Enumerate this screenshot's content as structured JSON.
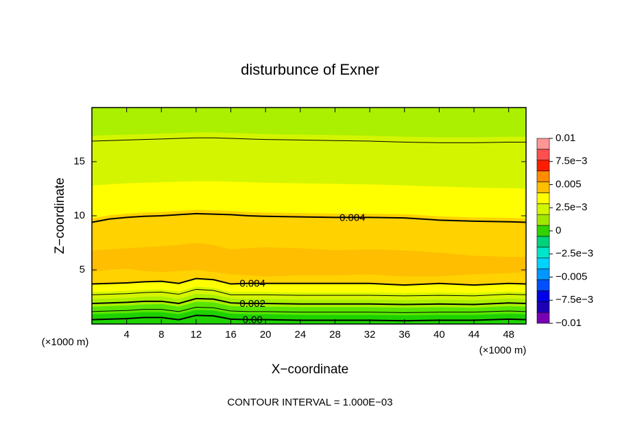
{
  "chart_data": {
    "type": "contour",
    "title": "disturbunce of Exner",
    "xlabel": "X−coordinate",
    "ylabel": "Z−coordinate",
    "x_unit": "(×1000 m)",
    "footer": "CONTOUR INTERVAL = 1.000E−03",
    "xlim": [
      0,
      50
    ],
    "ylim": [
      0,
      20
    ],
    "xticks": [
      4,
      8,
      12,
      16,
      20,
      24,
      28,
      32,
      36,
      40,
      44,
      48
    ],
    "yticks": [
      5,
      10,
      15
    ],
    "x": [
      0,
      2,
      4,
      6,
      8,
      10,
      12,
      14,
      16,
      18,
      20,
      24,
      28,
      32,
      36,
      40,
      44,
      48,
      50
    ],
    "shading": [
      {
        "color": "#aaf000",
        "top": [
          20,
          20,
          20,
          20,
          20,
          20,
          20,
          20,
          20,
          20,
          20,
          20,
          20,
          20,
          20,
          20,
          20,
          20,
          20
        ]
      },
      {
        "color": "#d4f500",
        "top": [
          17.4,
          17.45,
          17.5,
          17.55,
          17.6,
          17.65,
          17.7,
          17.7,
          17.65,
          17.6,
          17.55,
          17.5,
          17.45,
          17.4,
          17.3,
          17.25,
          17.25,
          17.3,
          17.3
        ]
      },
      {
        "color": "#ffff00",
        "top": [
          12.8,
          12.9,
          13.0,
          13.05,
          13.1,
          13.15,
          13.2,
          13.2,
          13.15,
          13.1,
          13.05,
          13.0,
          12.95,
          12.9,
          12.8,
          12.7,
          12.6,
          12.55,
          12.5
        ]
      },
      {
        "color": "#ffd200",
        "top": [
          9.75,
          10.05,
          10.2,
          10.3,
          10.35,
          10.45,
          10.55,
          10.5,
          10.45,
          10.35,
          10.3,
          10.25,
          10.2,
          10.2,
          10.15,
          9.95,
          9.85,
          9.8,
          9.75
        ]
      },
      {
        "color": "#ffbe00",
        "top": [
          6.8,
          6.9,
          7.0,
          7.1,
          7.2,
          7.3,
          7.5,
          7.3,
          6.9,
          7.0,
          7.1,
          7.0,
          6.8,
          6.9,
          6.8,
          6.6,
          6.3,
          6.2,
          6.2
        ]
      },
      {
        "color": "#ffd200",
        "top": [
          4.8,
          5.0,
          5.1,
          4.9,
          4.8,
          4.9,
          5.0,
          4.8,
          4.6,
          4.5,
          4.4,
          4.5,
          4.5,
          4.6,
          4.4,
          4.4,
          4.6,
          4.7,
          4.8
        ]
      },
      {
        "color": "#ffff00",
        "top": [
          3.65,
          3.7,
          3.75,
          3.85,
          3.9,
          3.7,
          4.15,
          4.05,
          3.65,
          3.7,
          3.7,
          3.7,
          3.7,
          3.7,
          3.55,
          3.7,
          3.55,
          3.7,
          3.65
        ]
      },
      {
        "color": "#d4f500",
        "top": [
          2.95,
          3.0,
          3.05,
          3.15,
          3.2,
          3.0,
          3.45,
          3.35,
          2.95,
          2.95,
          2.95,
          2.9,
          2.9,
          2.9,
          2.85,
          2.9,
          2.85,
          3.0,
          2.95
        ]
      },
      {
        "color": "#aaf000",
        "top": [
          2.3,
          2.35,
          2.4,
          2.5,
          2.55,
          2.3,
          2.8,
          2.7,
          2.35,
          2.3,
          2.3,
          2.25,
          2.25,
          2.25,
          2.2,
          2.25,
          2.2,
          2.35,
          2.3
        ]
      },
      {
        "color": "#5ae600",
        "top": [
          1.6,
          1.65,
          1.7,
          1.8,
          1.85,
          1.6,
          2.05,
          2.0,
          1.65,
          1.6,
          1.6,
          1.55,
          1.55,
          1.55,
          1.5,
          1.55,
          1.5,
          1.65,
          1.6
        ]
      },
      {
        "color": "#1ed200",
        "top": [
          0.9,
          0.95,
          1.0,
          1.1,
          1.1,
          0.9,
          1.3,
          1.25,
          0.95,
          0.9,
          0.9,
          0.85,
          0.85,
          0.85,
          0.8,
          0.85,
          0.85,
          0.95,
          0.9
        ]
      }
    ],
    "contours": [
      {
        "level": 0.003,
        "y": [
          16.9,
          16.95,
          17.0,
          17.05,
          17.1,
          17.15,
          17.2,
          17.2,
          17.15,
          17.1,
          17.05,
          17.0,
          16.95,
          16.9,
          16.8,
          16.75,
          16.75,
          16.8,
          16.8
        ]
      },
      {
        "level": 0.004,
        "label": "0.004",
        "y": [
          9.4,
          9.7,
          9.85,
          9.95,
          10.0,
          10.1,
          10.2,
          10.15,
          10.1,
          10.0,
          9.95,
          9.9,
          9.85,
          9.85,
          9.8,
          9.6,
          9.5,
          9.45,
          9.4
        ]
      },
      {
        "level": 0.004,
        "label": "0.004",
        "y": [
          3.7,
          3.75,
          3.8,
          3.9,
          3.95,
          3.75,
          4.2,
          4.1,
          3.7,
          3.75,
          3.75,
          3.75,
          3.75,
          3.75,
          3.6,
          3.75,
          3.6,
          3.75,
          3.7
        ]
      },
      {
        "level": 0.003,
        "y": [
          2.7,
          2.75,
          2.8,
          2.9,
          2.95,
          2.75,
          3.2,
          3.1,
          2.7,
          2.7,
          2.7,
          2.65,
          2.65,
          2.65,
          2.6,
          2.65,
          2.6,
          2.75,
          2.7
        ]
      },
      {
        "level": 0.002,
        "label": "0.002",
        "y": [
          1.9,
          1.95,
          2.0,
          2.1,
          2.1,
          1.9,
          2.35,
          2.3,
          1.95,
          1.9,
          1.9,
          1.85,
          1.85,
          1.85,
          1.8,
          1.85,
          1.8,
          1.95,
          1.9
        ]
      },
      {
        "level": 0.001,
        "y": [
          1.15,
          1.2,
          1.25,
          1.35,
          1.35,
          1.15,
          1.55,
          1.5,
          1.2,
          1.15,
          1.15,
          1.1,
          1.1,
          1.1,
          1.05,
          1.1,
          1.1,
          1.2,
          1.15
        ]
      },
      {
        "level": 0,
        "label": "0.00",
        "y": [
          0.4,
          0.45,
          0.5,
          0.6,
          0.6,
          0.4,
          0.8,
          0.75,
          0.45,
          0.4,
          0.4,
          0.35,
          0.35,
          0.35,
          0.3,
          0.35,
          0.35,
          0.45,
          0.4
        ]
      }
    ],
    "colorbar": {
      "lim": [
        -0.01,
        0.01
      ],
      "colors": [
        "#7800b4",
        "#1e00b4",
        "#0000e6",
        "#0050ff",
        "#0096ff",
        "#00d2ff",
        "#00e6c8",
        "#00d27a",
        "#32d200",
        "#a0e600",
        "#d4f500",
        "#ffff00",
        "#ffbe00",
        "#ff8c00",
        "#ff1e00",
        "#ff5050",
        "#ff9696"
      ],
      "ticks": [
        0.01,
        {
          "value": 0.0075,
          "label": "7.5e−3"
        },
        0.005,
        {
          "value": 0.0025,
          "label": "2.5e−3"
        },
        0,
        {
          "value": -0.0025,
          "label": "−2.5e−3"
        },
        {
          "value": -0.005,
          "label": "−0.005"
        },
        {
          "value": -0.0075,
          "label": "−7.5e−3"
        },
        {
          "value": -0.01,
          "label": "−0.01"
        }
      ]
    }
  }
}
